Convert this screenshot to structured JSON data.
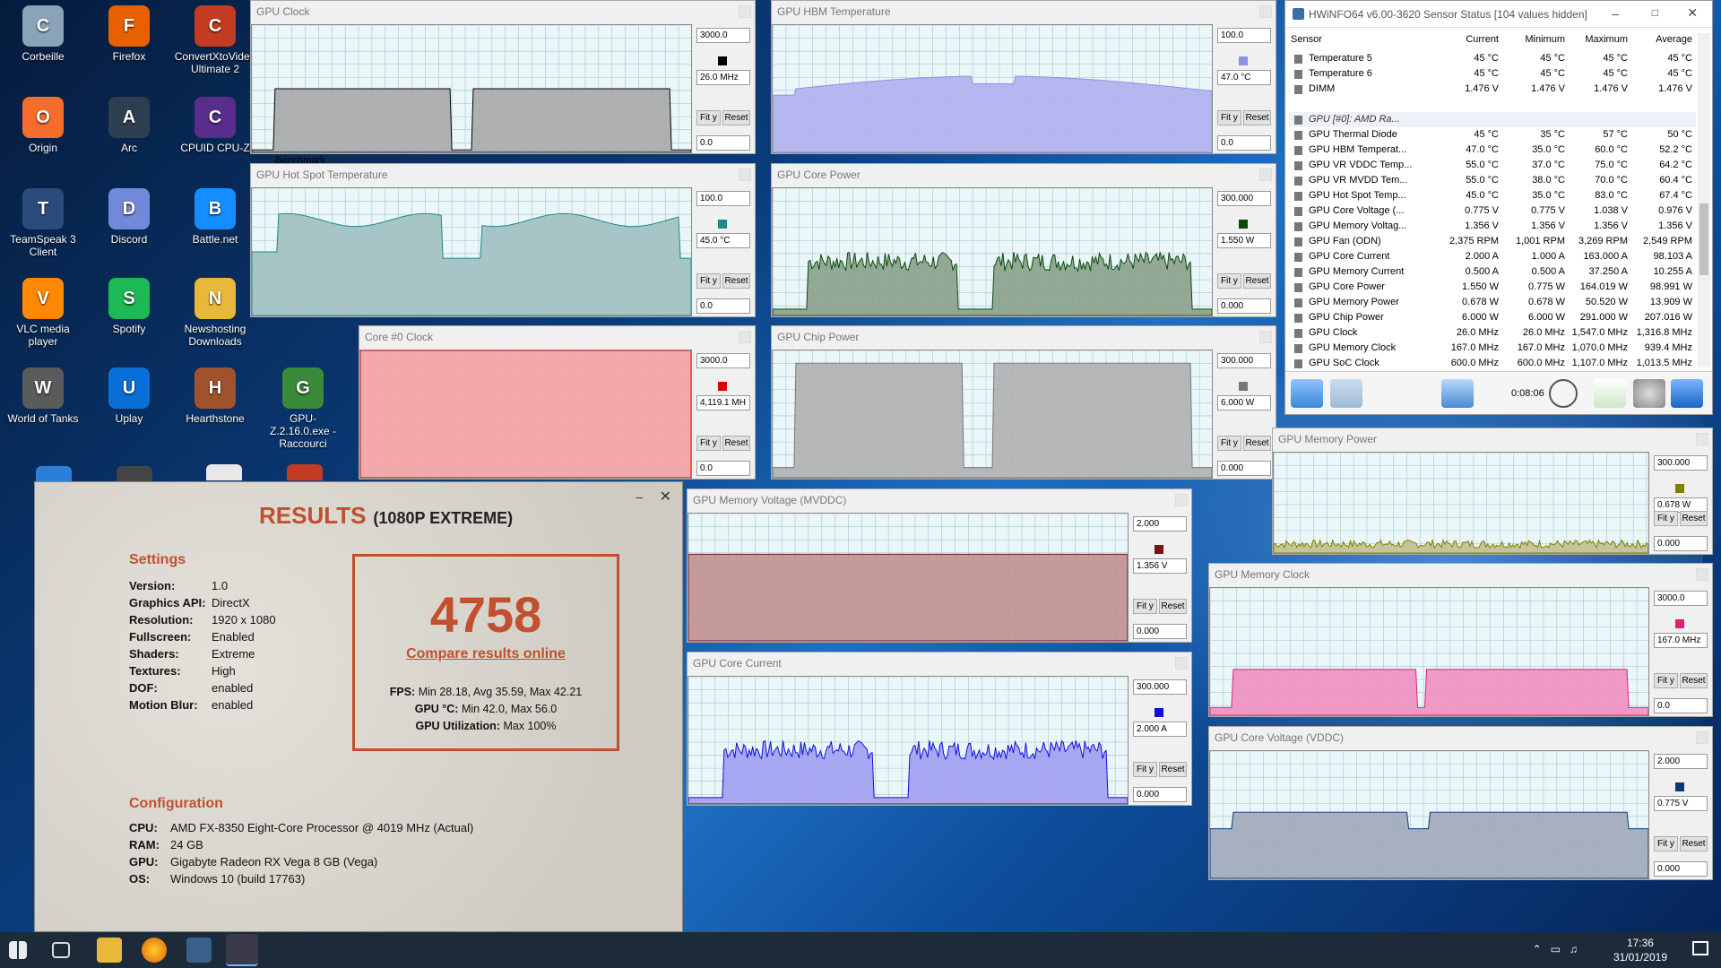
{
  "desktop": {
    "icons": [
      {
        "label": "Corbeille",
        "icon": "recycle-bin-icon",
        "color": "#8aa3b8"
      },
      {
        "label": "Firefox",
        "icon": "firefox-icon",
        "color": "#e66000"
      },
      {
        "label": "ConvertXtoVideo Ultimate 2",
        "icon": "convertx-icon",
        "color": "#c23b22"
      },
      {
        "label": "Origin",
        "icon": "origin-icon",
        "color": "#f56c2d"
      },
      {
        "label": "Arc",
        "icon": "arc-icon",
        "color": "#2c3e50"
      },
      {
        "label": "CPUID CPU-Z",
        "icon": "cpuz-icon",
        "color": "#5a2d8c"
      },
      {
        "label": "TeamSpeak 3 Client",
        "icon": "teamspeak-icon",
        "color": "#2a4b7c"
      },
      {
        "label": "Discord",
        "icon": "discord-icon",
        "color": "#7289da"
      },
      {
        "label": "Battle.net",
        "icon": "battlenet-icon",
        "color": "#148eff"
      },
      {
        "label": "VLC media player",
        "icon": "vlc-icon",
        "color": "#ff8800"
      },
      {
        "label": "Spotify",
        "icon": "spotify-icon",
        "color": "#1db954"
      },
      {
        "label": "Newshosting Downloads",
        "icon": "folder-icon",
        "color": "#e8b83a"
      },
      {
        "label": "World of Tanks",
        "icon": "wot-icon",
        "color": "#5b5b5b"
      },
      {
        "label": "Uplay",
        "icon": "uplay-icon",
        "color": "#0a6fd6"
      },
      {
        "label": "Hearthstone",
        "icon": "hearthstone-icon",
        "color": "#a0522d"
      },
      {
        "label": "GPU-Z.2.16.0.exe - Raccourci",
        "icon": "gpuz-icon",
        "color": "#3a8a3a"
      }
    ],
    "partial_label": "Benchmark"
  },
  "graphs": [
    {
      "id": "gpu-clock",
      "title": "GPU Clock",
      "max": "3000.0",
      "cur": "26.0 MHz",
      "min": "0.0",
      "color": "#000000",
      "fill": "#a9a9a9",
      "mode": "clock"
    },
    {
      "id": "gpu-hbm-temp",
      "title": "GPU HBM Temperature",
      "max": "100.0",
      "cur": "47.0 °C",
      "min": "0.0",
      "color": "#9090e0",
      "fill": "#b0b0f0",
      "mode": "hbm"
    },
    {
      "id": "gpu-hotspot",
      "title": "GPU Hot Spot Temperature",
      "max": "100.0",
      "cur": "45.0 °C",
      "min": "0.0",
      "color": "#1a8a8a",
      "fill": "#a0c0c0",
      "mode": "hot"
    },
    {
      "id": "gpu-core-power",
      "title": "GPU Core Power",
      "max": "300.000",
      "cur": "1.550 W",
      "min": "0.000",
      "color": "#0a4a0a",
      "fill": "#8aa08a",
      "mode": "spiky"
    },
    {
      "id": "core0-clock",
      "title": "Core #0 Clock",
      "max": "3000.0",
      "cur": "4,119.1 MH",
      "min": "0.0",
      "color": "#dd0000",
      "fill": "#f4a0a0",
      "mode": "full"
    },
    {
      "id": "gpu-chip-power",
      "title": "GPU Chip Power",
      "max": "300.000",
      "cur": "6.000 W",
      "min": "0.000",
      "color": "#777777",
      "fill": "#b0b0b0",
      "mode": "chip"
    },
    {
      "id": "gpu-mem-voltage",
      "title": "GPU Memory Voltage (MVDDC)",
      "max": "2.000",
      "cur": "1.356 V",
      "min": "0.000",
      "color": "#7a1010",
      "fill": "#c09090",
      "mode": "flat"
    },
    {
      "id": "gpu-core-current",
      "title": "GPU Core Current",
      "max": "300.000",
      "cur": "2.000 A",
      "min": "0.000",
      "color": "#1010dd",
      "fill": "#a0a0f0",
      "mode": "spiky"
    },
    {
      "id": "gpu-mem-power",
      "title": "GPU Memory Power",
      "max": "300.000",
      "cur": "0.678 W",
      "min": "0.000",
      "color": "#808000",
      "fill": "#c0c090",
      "mode": "low"
    },
    {
      "id": "gpu-mem-clock",
      "title": "GPU Memory Clock",
      "max": "3000.0",
      "cur": "167.0 MHz",
      "min": "0.0",
      "color": "#e0207a",
      "fill": "#f090c0",
      "mode": "memclk"
    },
    {
      "id": "gpu-core-voltage",
      "title": "GPU Core Voltage (VDDC)",
      "max": "2.000",
      "cur": "0.775 V",
      "min": "0.000",
      "color": "#0a3a7a",
      "fill": "#a0a8b8",
      "mode": "vddc"
    }
  ],
  "buttons": {
    "fit": "Fit y",
    "reset": "Reset"
  },
  "results": {
    "title": "RESULTS",
    "subtitle": "(1080P EXTREME)",
    "settings_header": "Settings",
    "settings": [
      {
        "k": "Version:",
        "v": "1.0"
      },
      {
        "k": "Graphics API:",
        "v": "DirectX"
      },
      {
        "k": "Resolution:",
        "v": "1920 x 1080"
      },
      {
        "k": "Fullscreen:",
        "v": "Enabled"
      },
      {
        "k": "Shaders:",
        "v": "Extreme"
      },
      {
        "k": "Textures:",
        "v": "High"
      },
      {
        "k": "DOF:",
        "v": "enabled"
      },
      {
        "k": "Motion Blur:",
        "v": "enabled"
      }
    ],
    "score": "4758",
    "compare": "Compare results online",
    "fps_label": "FPS:",
    "fps_value": "Min 28.18, Avg 35.59, Max 42.21",
    "gpu_temp_label": "GPU °C:",
    "gpu_temp_value": "Min 42.0, Max 56.0",
    "gpu_util_label": "GPU Utilization:",
    "gpu_util_value": "Max 100%",
    "config_header": "Configuration",
    "config": [
      {
        "k": "CPU:",
        "v": "AMD FX-8350 Eight-Core Processor @ 4019 MHz (Actual)"
      },
      {
        "k": "RAM:",
        "v": "24 GB"
      },
      {
        "k": "GPU:",
        "v": "Gigabyte Radeon RX Vega 8 GB (Vega)"
      },
      {
        "k": "OS:",
        "v": "Windows 10 (build 17763)"
      }
    ]
  },
  "hwinfo": {
    "title": "HWiNFO64 v6.00-3620 Sensor Status [104 values hidden]",
    "columns": [
      "Sensor",
      "Current",
      "Minimum",
      "Maximum",
      "Average"
    ],
    "rows": [
      [
        "Temperature 5",
        "45 °C",
        "45 °C",
        "45 °C",
        "45 °C"
      ],
      [
        "Temperature 6",
        "45 °C",
        "45 °C",
        "45 °C",
        "45 °C"
      ],
      [
        "DIMM",
        "1.476 V",
        "1.476 V",
        "1.476 V",
        "1.476 V"
      ],
      [
        "",
        "",
        "",
        "",
        ""
      ],
      [
        "GPU [#0]: AMD Ra...",
        "",
        "",
        "",
        ""
      ],
      [
        "GPU Thermal Diode",
        "45 °C",
        "35 °C",
        "57 °C",
        "50 °C"
      ],
      [
        "GPU HBM Temperat...",
        "47.0 °C",
        "35.0 °C",
        "60.0 °C",
        "52.2 °C"
      ],
      [
        "GPU VR VDDC Temp...",
        "55.0 °C",
        "37.0 °C",
        "75.0 °C",
        "64.2 °C"
      ],
      [
        "GPU VR MVDD Tem...",
        "55.0 °C",
        "38.0 °C",
        "70.0 °C",
        "60.4 °C"
      ],
      [
        "GPU Hot Spot Temp...",
        "45.0 °C",
        "35.0 °C",
        "83.0 °C",
        "67.4 °C"
      ],
      [
        "GPU Core Voltage (...",
        "0.775 V",
        "0.775 V",
        "1.038 V",
        "0.976 V"
      ],
      [
        "GPU Memory Voltag...",
        "1.356 V",
        "1.356 V",
        "1.356 V",
        "1.356 V"
      ],
      [
        "GPU Fan (ODN)",
        "2,375 RPM",
        "1,001 RPM",
        "3,269 RPM",
        "2,549 RPM"
      ],
      [
        "GPU Core Current",
        "2.000 A",
        "1.000 A",
        "163.000 A",
        "98.103 A"
      ],
      [
        "GPU Memory Current",
        "0.500 A",
        "0.500 A",
        "37.250 A",
        "10.255 A"
      ],
      [
        "GPU Core Power",
        "1.550 W",
        "0.775 W",
        "164.019 W",
        "98.991 W"
      ],
      [
        "GPU Memory Power",
        "0.678 W",
        "0.678 W",
        "50.520 W",
        "13.909 W"
      ],
      [
        "GPU Chip Power",
        "6.000 W",
        "6.000 W",
        "291.000 W",
        "207.016 W"
      ],
      [
        "GPU Clock",
        "26.0 MHz",
        "26.0 MHz",
        "1,547.0 MHz",
        "1,316.8 MHz"
      ],
      [
        "GPU Memory Clock",
        "167.0 MHz",
        "167.0 MHz",
        "1,070.0 MHz",
        "939.4 MHz"
      ],
      [
        "GPU SoC Clock",
        "600.0 MHz",
        "600.0 MHz",
        "1,107.0 MHz",
        "1,013.5 MHz"
      ]
    ],
    "elapsed": "0:08:06"
  },
  "taskbar": {
    "time": "17:36",
    "date": "31/01/2019"
  }
}
